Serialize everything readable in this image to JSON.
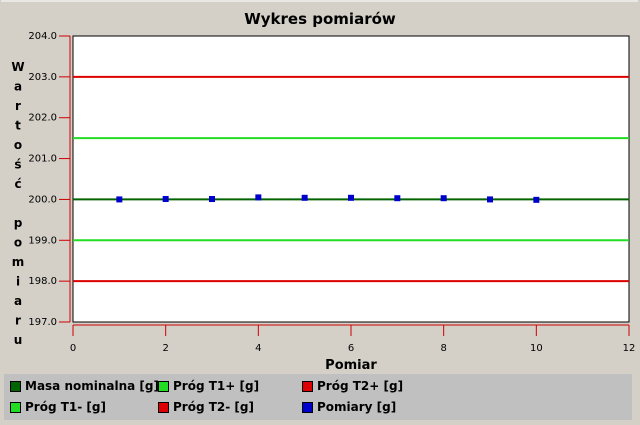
{
  "chart_data": {
    "type": "scatter",
    "title": "Wykres pomiarów",
    "xlabel": "Pomiar",
    "ylabel": "Wartość pomiaru",
    "xlim": [
      0,
      12
    ],
    "ylim": [
      197.0,
      204.0
    ],
    "x_ticks": [
      "0",
      "2",
      "4",
      "6",
      "8",
      "10",
      "12"
    ],
    "y_ticks": [
      "197.0",
      "198.0",
      "199.0",
      "200.0",
      "201.0",
      "202.0",
      "203.0",
      "204.0"
    ],
    "grid": false,
    "legend_position": "bottom",
    "series": [
      {
        "name": "Masa nominalna [g]",
        "kind": "hline",
        "value": 200.0,
        "color": "#006400"
      },
      {
        "name": "Próg T1+ [g]",
        "kind": "hline",
        "value": 201.5,
        "color": "#22dd22"
      },
      {
        "name": "Próg T2+ [g]",
        "kind": "hline",
        "value": 203.0,
        "color": "#dd0000"
      },
      {
        "name": "Próg T1- [g]",
        "kind": "hline",
        "value": 199.0,
        "color": "#22dd22"
      },
      {
        "name": "Próg T2- [g]",
        "kind": "hline",
        "value": 198.0,
        "color": "#dd0000"
      },
      {
        "name": "Pomiary [g]",
        "kind": "points",
        "color": "#0000cc",
        "x": [
          1,
          2,
          3,
          4,
          5,
          6,
          7,
          8,
          9,
          10
        ],
        "y": [
          200.0,
          200.01,
          200.01,
          200.05,
          200.04,
          200.04,
          200.03,
          200.03,
          200.0,
          199.99
        ]
      }
    ]
  },
  "legend": {
    "items": [
      {
        "label": "Masa nominalna [g]",
        "color": "#006400"
      },
      {
        "label": "Próg T1+ [g]",
        "color": "#22dd22"
      },
      {
        "label": "Próg T2+ [g]",
        "color": "#dd0000"
      },
      {
        "label": "Próg T1- [g]",
        "color": "#22dd22"
      },
      {
        "label": "Próg T2- [g]",
        "color": "#dd0000"
      },
      {
        "label": "Pomiary [g]",
        "color": "#0000cc"
      }
    ]
  }
}
